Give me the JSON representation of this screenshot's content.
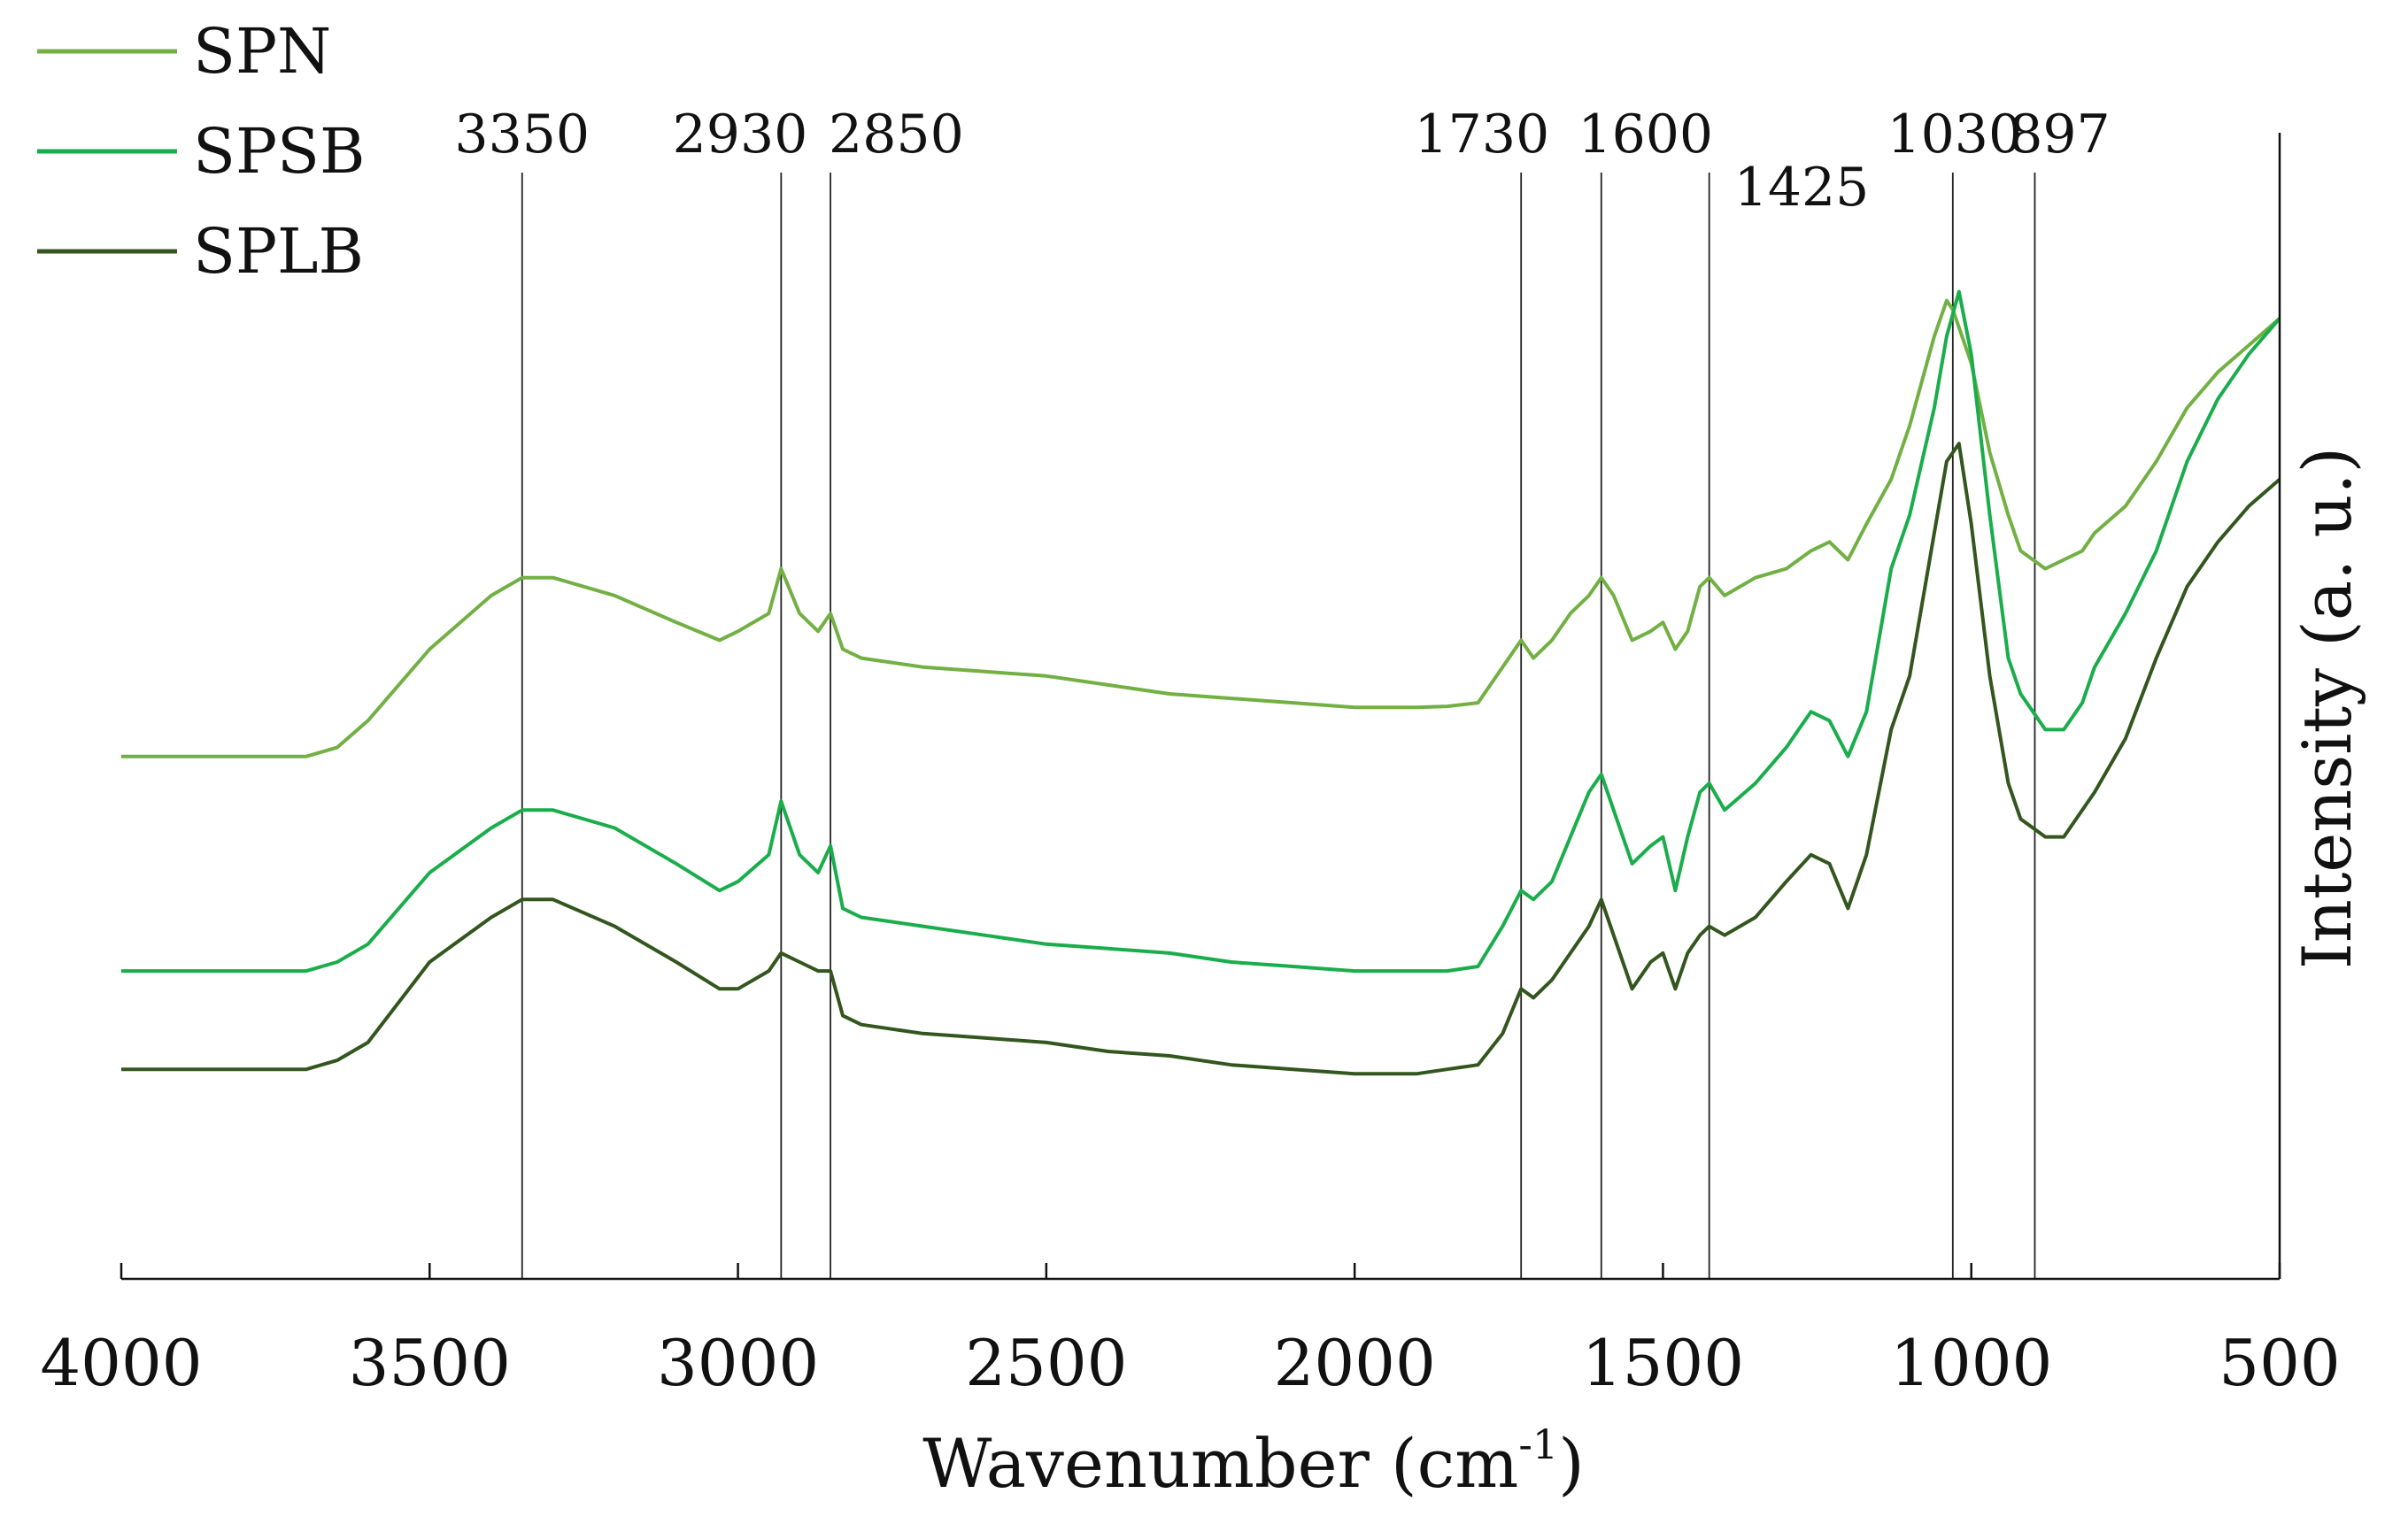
{
  "chart_data": {
    "type": "line",
    "xlabel": "Wavenumber (cm",
    "xlabel_sup": "-1",
    "xlabel_close": ")",
    "ylabel": "Intensity (a. u.)",
    "xlim": [
      4000,
      500
    ],
    "x_reversed": true,
    "y_ticks_shown": false,
    "xticks": [
      {
        "value": 4000,
        "label": "4000"
      },
      {
        "value": 3500,
        "label": "3500"
      },
      {
        "value": 3000,
        "label": "3000"
      },
      {
        "value": 2500,
        "label": "2500"
      },
      {
        "value": 2000,
        "label": "2000"
      },
      {
        "value": 1500,
        "label": "1500"
      },
      {
        "value": 1000,
        "label": "1000"
      },
      {
        "value": 500,
        "label": "500"
      }
    ],
    "legend_position": "top-left",
    "peak_markers": [
      {
        "value": 3350,
        "label": "3350"
      },
      {
        "value": 2930,
        "label": "2930"
      },
      {
        "value": 2850,
        "label": "2850"
      },
      {
        "value": 1730,
        "label": "1730"
      },
      {
        "value": 1600,
        "label": "1600"
      },
      {
        "value": 1425,
        "label": "1425"
      },
      {
        "value": 1030,
        "label": "1030"
      },
      {
        "value": 897,
        "label": "897"
      }
    ],
    "series": [
      {
        "name": "SPN",
        "color": "#72b043",
        "points": [
          [
            4000,
            0.53
          ],
          [
            3900,
            0.53
          ],
          [
            3800,
            0.53
          ],
          [
            3700,
            0.53
          ],
          [
            3650,
            0.54
          ],
          [
            3600,
            0.57
          ],
          [
            3500,
            0.65
          ],
          [
            3400,
            0.71
          ],
          [
            3350,
            0.73
          ],
          [
            3300,
            0.73
          ],
          [
            3200,
            0.71
          ],
          [
            3100,
            0.68
          ],
          [
            3030,
            0.66
          ],
          [
            3000,
            0.67
          ],
          [
            2950,
            0.69
          ],
          [
            2930,
            0.74
          ],
          [
            2900,
            0.69
          ],
          [
            2870,
            0.67
          ],
          [
            2850,
            0.69
          ],
          [
            2830,
            0.65
          ],
          [
            2800,
            0.64
          ],
          [
            2700,
            0.63
          ],
          [
            2600,
            0.625
          ],
          [
            2500,
            0.62
          ],
          [
            2400,
            0.61
          ],
          [
            2300,
            0.6
          ],
          [
            2200,
            0.595
          ],
          [
            2100,
            0.59
          ],
          [
            2000,
            0.585
          ],
          [
            1950,
            0.585
          ],
          [
            1900,
            0.585
          ],
          [
            1850,
            0.586
          ],
          [
            1800,
            0.59
          ],
          [
            1760,
            0.63
          ],
          [
            1730,
            0.66
          ],
          [
            1710,
            0.64
          ],
          [
            1680,
            0.66
          ],
          [
            1650,
            0.69
          ],
          [
            1620,
            0.71
          ],
          [
            1600,
            0.73
          ],
          [
            1580,
            0.71
          ],
          [
            1550,
            0.66
          ],
          [
            1520,
            0.67
          ],
          [
            1500,
            0.68
          ],
          [
            1480,
            0.65
          ],
          [
            1460,
            0.67
          ],
          [
            1440,
            0.72
          ],
          [
            1425,
            0.73
          ],
          [
            1400,
            0.71
          ],
          [
            1350,
            0.73
          ],
          [
            1300,
            0.74
          ],
          [
            1260,
            0.76
          ],
          [
            1230,
            0.77
          ],
          [
            1200,
            0.75
          ],
          [
            1170,
            0.79
          ],
          [
            1130,
            0.84
          ],
          [
            1100,
            0.9
          ],
          [
            1060,
            1.0
          ],
          [
            1040,
            1.04
          ],
          [
            1030,
            1.03
          ],
          [
            1000,
            0.97
          ],
          [
            970,
            0.87
          ],
          [
            940,
            0.8
          ],
          [
            920,
            0.76
          ],
          [
            900,
            0.75
          ],
          [
            880,
            0.74
          ],
          [
            850,
            0.75
          ],
          [
            820,
            0.76
          ],
          [
            800,
            0.78
          ],
          [
            750,
            0.81
          ],
          [
            700,
            0.86
          ],
          [
            650,
            0.92
          ],
          [
            600,
            0.96
          ],
          [
            550,
            0.99
          ],
          [
            500,
            1.02
          ]
        ]
      },
      {
        "name": "SPSB",
        "color": "#1aad4b",
        "points": [
          [
            4000,
            0.29
          ],
          [
            3900,
            0.29
          ],
          [
            3800,
            0.29
          ],
          [
            3700,
            0.29
          ],
          [
            3650,
            0.3
          ],
          [
            3600,
            0.32
          ],
          [
            3500,
            0.4
          ],
          [
            3400,
            0.45
          ],
          [
            3350,
            0.47
          ],
          [
            3300,
            0.47
          ],
          [
            3200,
            0.45
          ],
          [
            3100,
            0.41
          ],
          [
            3030,
            0.38
          ],
          [
            3000,
            0.39
          ],
          [
            2950,
            0.42
          ],
          [
            2930,
            0.48
          ],
          [
            2900,
            0.42
          ],
          [
            2870,
            0.4
          ],
          [
            2850,
            0.43
          ],
          [
            2830,
            0.36
          ],
          [
            2800,
            0.35
          ],
          [
            2700,
            0.34
          ],
          [
            2600,
            0.33
          ],
          [
            2500,
            0.32
          ],
          [
            2400,
            0.315
          ],
          [
            2300,
            0.31
          ],
          [
            2200,
            0.3
          ],
          [
            2100,
            0.295
          ],
          [
            2000,
            0.29
          ],
          [
            1950,
            0.29
          ],
          [
            1900,
            0.29
          ],
          [
            1850,
            0.29
          ],
          [
            1800,
            0.295
          ],
          [
            1760,
            0.34
          ],
          [
            1730,
            0.38
          ],
          [
            1710,
            0.37
          ],
          [
            1680,
            0.39
          ],
          [
            1650,
            0.44
          ],
          [
            1620,
            0.49
          ],
          [
            1600,
            0.51
          ],
          [
            1580,
            0.47
          ],
          [
            1550,
            0.41
          ],
          [
            1520,
            0.43
          ],
          [
            1500,
            0.44
          ],
          [
            1480,
            0.38
          ],
          [
            1460,
            0.44
          ],
          [
            1440,
            0.49
          ],
          [
            1425,
            0.5
          ],
          [
            1400,
            0.47
          ],
          [
            1350,
            0.5
          ],
          [
            1300,
            0.54
          ],
          [
            1260,
            0.58
          ],
          [
            1230,
            0.57
          ],
          [
            1200,
            0.53
          ],
          [
            1170,
            0.58
          ],
          [
            1130,
            0.74
          ],
          [
            1100,
            0.8
          ],
          [
            1060,
            0.92
          ],
          [
            1040,
            1.0
          ],
          [
            1020,
            1.05
          ],
          [
            1000,
            0.98
          ],
          [
            970,
            0.8
          ],
          [
            940,
            0.64
          ],
          [
            920,
            0.6
          ],
          [
            900,
            0.58
          ],
          [
            880,
            0.56
          ],
          [
            850,
            0.56
          ],
          [
            820,
            0.59
          ],
          [
            800,
            0.63
          ],
          [
            750,
            0.69
          ],
          [
            700,
            0.76
          ],
          [
            650,
            0.86
          ],
          [
            600,
            0.93
          ],
          [
            550,
            0.98
          ],
          [
            500,
            1.02
          ]
        ]
      },
      {
        "name": "SPLB",
        "color": "#33561e",
        "points": [
          [
            4000,
            0.18
          ],
          [
            3900,
            0.18
          ],
          [
            3800,
            0.18
          ],
          [
            3700,
            0.18
          ],
          [
            3650,
            0.19
          ],
          [
            3600,
            0.21
          ],
          [
            3500,
            0.3
          ],
          [
            3400,
            0.35
          ],
          [
            3350,
            0.37
          ],
          [
            3300,
            0.37
          ],
          [
            3200,
            0.34
          ],
          [
            3100,
            0.3
          ],
          [
            3030,
            0.27
          ],
          [
            3000,
            0.27
          ],
          [
            2950,
            0.29
          ],
          [
            2930,
            0.31
          ],
          [
            2900,
            0.3
          ],
          [
            2870,
            0.29
          ],
          [
            2850,
            0.29
          ],
          [
            2830,
            0.24
          ],
          [
            2800,
            0.23
          ],
          [
            2700,
            0.22
          ],
          [
            2600,
            0.215
          ],
          [
            2500,
            0.21
          ],
          [
            2400,
            0.2
          ],
          [
            2300,
            0.195
          ],
          [
            2200,
            0.185
          ],
          [
            2100,
            0.18
          ],
          [
            2000,
            0.175
          ],
          [
            1950,
            0.175
          ],
          [
            1900,
            0.175
          ],
          [
            1850,
            0.18
          ],
          [
            1800,
            0.185
          ],
          [
            1760,
            0.22
          ],
          [
            1730,
            0.27
          ],
          [
            1710,
            0.26
          ],
          [
            1680,
            0.28
          ],
          [
            1650,
            0.31
          ],
          [
            1620,
            0.34
          ],
          [
            1600,
            0.37
          ],
          [
            1580,
            0.33
          ],
          [
            1550,
            0.27
          ],
          [
            1520,
            0.3
          ],
          [
            1500,
            0.31
          ],
          [
            1480,
            0.27
          ],
          [
            1460,
            0.31
          ],
          [
            1440,
            0.33
          ],
          [
            1425,
            0.34
          ],
          [
            1400,
            0.33
          ],
          [
            1350,
            0.35
          ],
          [
            1300,
            0.39
          ],
          [
            1260,
            0.42
          ],
          [
            1230,
            0.41
          ],
          [
            1200,
            0.36
          ],
          [
            1170,
            0.42
          ],
          [
            1130,
            0.56
          ],
          [
            1100,
            0.62
          ],
          [
            1060,
            0.78
          ],
          [
            1040,
            0.86
          ],
          [
            1020,
            0.88
          ],
          [
            1000,
            0.79
          ],
          [
            970,
            0.62
          ],
          [
            940,
            0.5
          ],
          [
            920,
            0.46
          ],
          [
            900,
            0.45
          ],
          [
            880,
            0.44
          ],
          [
            850,
            0.44
          ],
          [
            820,
            0.47
          ],
          [
            800,
            0.49
          ],
          [
            750,
            0.55
          ],
          [
            700,
            0.64
          ],
          [
            650,
            0.72
          ],
          [
            600,
            0.77
          ],
          [
            550,
            0.81
          ],
          [
            500,
            0.84
          ]
        ]
      }
    ]
  }
}
